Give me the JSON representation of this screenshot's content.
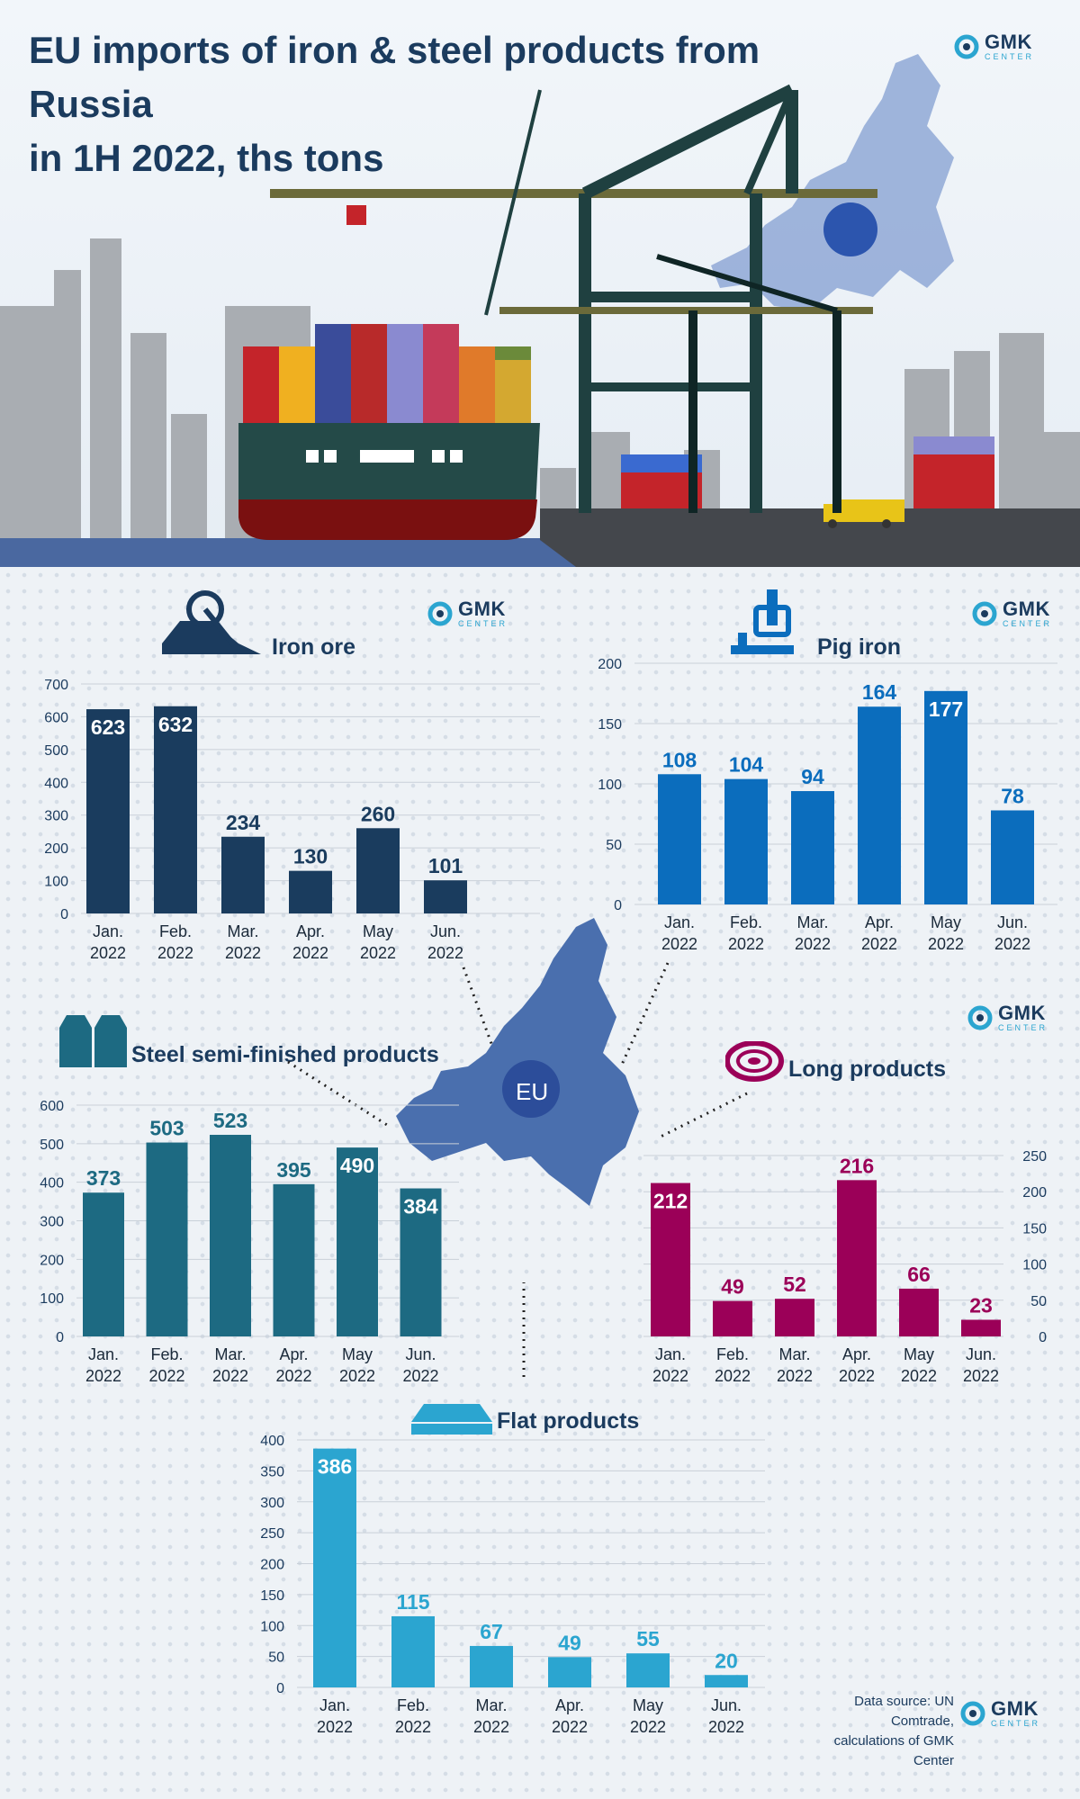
{
  "header": {
    "title_line1": "EU imports of iron & steel products from Russia",
    "title_line2": "in 1H 2022, ths tons"
  },
  "brand": {
    "name": "GMK",
    "sub": "CENTER"
  },
  "map_label": "EU",
  "source": {
    "line1": "Data source: UN Comtrade,",
    "line2": "calculations of GMK Center"
  },
  "colors": {
    "iron_ore": "#1a3c5e",
    "pig_iron": "#0b6dbd",
    "semi_finished": "#1d6a82",
    "long_products": "#9b0058",
    "flat_products": "#2ba5d0",
    "map": "#4a6fae"
  },
  "icons": [
    "mining-excavator-icon",
    "ladle-icon",
    "steel-billets-icon",
    "coil-icon",
    "steel-plate-icon",
    "eu-map-icon",
    "port-crane-icon",
    "container-ship-icon"
  ],
  "chart_data": [
    {
      "id": "iron_ore",
      "type": "bar",
      "title": "Iron ore",
      "categories": [
        "Jan.|2022",
        "Feb.|2022",
        "Mar.|2022",
        "Apr.|2022",
        "May|2022",
        "Jun.|2022"
      ],
      "values": [
        623,
        632,
        234,
        130,
        260,
        101
      ],
      "ylim": [
        0,
        700
      ],
      "yticks": [
        0,
        100,
        200,
        300,
        400,
        500,
        600,
        700
      ],
      "axis_side": "left",
      "grid": true
    },
    {
      "id": "pig_iron",
      "type": "bar",
      "title": "Pig iron",
      "categories": [
        "Jan.|2022",
        "Feb.|2022",
        "Mar.|2022",
        "Apr.|2022",
        "May|2022",
        "Jun.|2022"
      ],
      "values": [
        108,
        104,
        94,
        164,
        177,
        78
      ],
      "ylim": [
        0,
        200
      ],
      "yticks": [
        0,
        50,
        100,
        150,
        200
      ],
      "axis_side": "left",
      "grid": true
    },
    {
      "id": "semi_finished",
      "type": "bar",
      "title": "Steel semi-finished products",
      "categories": [
        "Jan.|2022",
        "Feb.|2022",
        "Mar.|2022",
        "Apr.|2022",
        "May|2022",
        "Jun.|2022"
      ],
      "values": [
        373,
        503,
        523,
        395,
        490,
        384
      ],
      "ylim": [
        0,
        600
      ],
      "yticks": [
        0,
        100,
        200,
        300,
        400,
        500,
        600
      ],
      "axis_side": "left",
      "grid": true
    },
    {
      "id": "long_products",
      "type": "bar",
      "title": "Long products",
      "categories": [
        "Jan.|2022",
        "Feb.|2022",
        "Mar.|2022",
        "Apr.|2022",
        "May|2022",
        "Jun.|2022"
      ],
      "values": [
        212,
        49,
        52,
        216,
        66,
        23
      ],
      "ylim": [
        0,
        250
      ],
      "yticks": [
        0,
        50,
        100,
        150,
        200,
        250
      ],
      "axis_side": "right",
      "grid": true
    },
    {
      "id": "flat_products",
      "type": "bar",
      "title": "Flat products",
      "categories": [
        "Jan.|2022",
        "Feb.|2022",
        "Mar.|2022",
        "Apr.|2022",
        "May|2022",
        "Jun.|2022"
      ],
      "values": [
        386,
        115,
        67,
        49,
        55,
        20
      ],
      "ylim": [
        0,
        400
      ],
      "yticks": [
        0,
        50,
        100,
        150,
        200,
        250,
        300,
        350,
        400
      ],
      "axis_side": "left",
      "grid": true
    }
  ]
}
